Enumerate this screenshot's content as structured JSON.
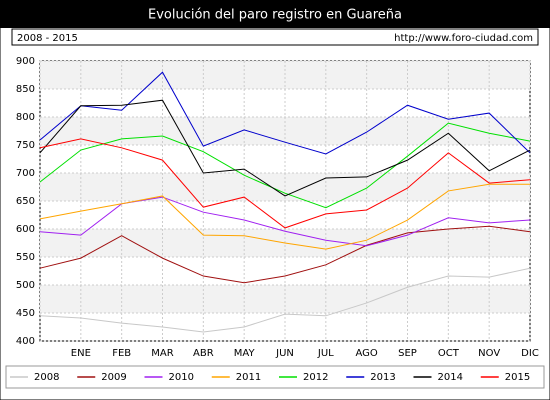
{
  "chart_data": {
    "type": "line",
    "title": "Evolución del paro registro en Guareña",
    "subtitle": "2008 - 2015",
    "source": "http://www.foro-ciudad.com",
    "categories": [
      null,
      "ENE",
      "FEB",
      "MAR",
      "ABR",
      "MAY",
      "JUN",
      "JUL",
      "AGO",
      "SEP",
      "OCT",
      "NOV",
      "DIC"
    ],
    "ylim": [
      400,
      900
    ],
    "yticks": [
      400,
      450,
      500,
      550,
      600,
      650,
      700,
      750,
      800,
      850,
      900
    ],
    "grid": true,
    "series": [
      {
        "name": "2008",
        "color": "#c8c8c8",
        "values": [
          445,
          441,
          432,
          425,
          416,
          425,
          448,
          445,
          468,
          496,
          516,
          514,
          530
        ]
      },
      {
        "name": "2009",
        "color": "#a01010",
        "values": [
          530,
          548,
          588,
          548,
          516,
          504,
          516,
          536,
          571,
          593,
          600,
          605,
          595
        ]
      },
      {
        "name": "2010",
        "color": "#a020f0",
        "values": [
          595,
          589,
          645,
          657,
          630,
          616,
          596,
          580,
          570,
          589,
          620,
          611,
          616
        ]
      },
      {
        "name": "2011",
        "color": "#ffa500",
        "values": [
          618,
          632,
          645,
          659,
          589,
          588,
          575,
          564,
          580,
          616,
          668,
          680,
          680
        ]
      },
      {
        "name": "2012",
        "color": "#00e000",
        "values": [
          684,
          741,
          761,
          766,
          738,
          696,
          664,
          638,
          673,
          730,
          789,
          771,
          757
        ]
      },
      {
        "name": "2013",
        "color": "#0000cc",
        "values": [
          759,
          820,
          812,
          880,
          748,
          777,
          755,
          734,
          773,
          821,
          796,
          807,
          736
        ]
      },
      {
        "name": "2014",
        "color": "#000000",
        "values": [
          736,
          820,
          821,
          830,
          700,
          707,
          659,
          691,
          693,
          723,
          771,
          704,
          741
        ]
      },
      {
        "name": "2015",
        "color": "#ff0000",
        "values": [
          745,
          761,
          745,
          723,
          639,
          657,
          602,
          627,
          634,
          673,
          736,
          682,
          688
        ]
      }
    ]
  }
}
